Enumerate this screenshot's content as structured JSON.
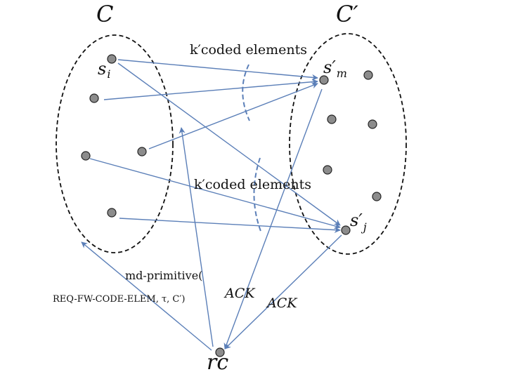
{
  "sets": {
    "left_label": "C",
    "right_label": "C′"
  },
  "nodes": {
    "s_i": "s",
    "s_i_sub": "i",
    "s_m": "s′",
    "s_m_sub": "m",
    "s_j": "s′",
    "s_j_sub": "j",
    "rc": "rc"
  },
  "annotations": {
    "coded_top": "k′coded elements",
    "coded_mid": "k′coded elements",
    "md_primitive_line1": "md-primitive(",
    "md_primitive_line2": "REQ-FW-CODE-ELEM, τ, C′)",
    "ack_left": "ACK",
    "ack_right": "ACK"
  },
  "colors": {
    "edge": "#5b7fb8",
    "node_fill": "#8c8c8c",
    "outline": "#111111"
  }
}
